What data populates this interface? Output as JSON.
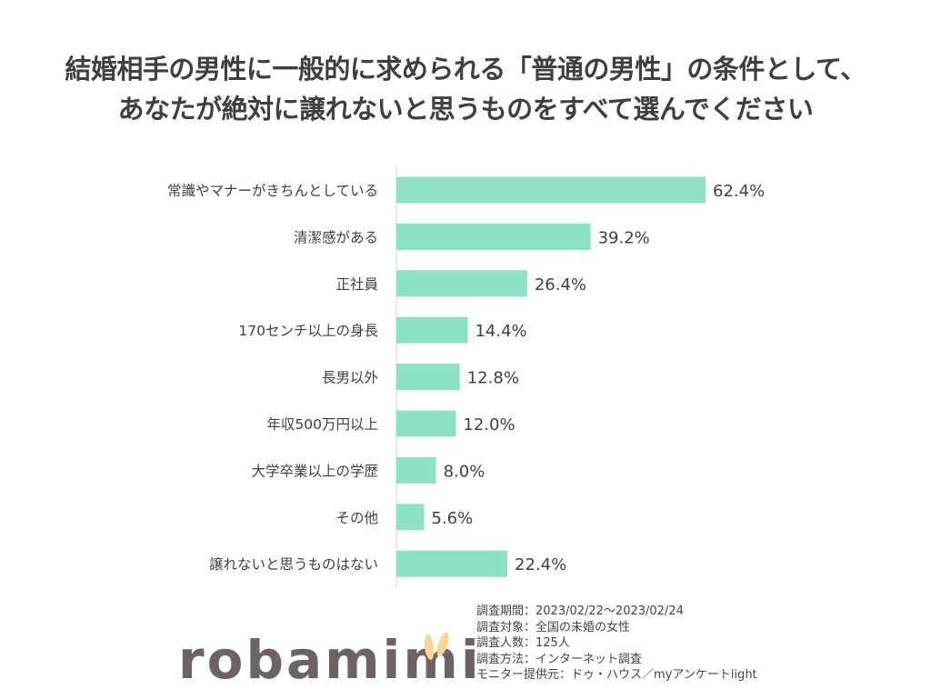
{
  "colors": {
    "bar": "#8ce0c4",
    "axis": "#e0e0e0",
    "text": "#404040",
    "logo": "#6d6361",
    "ear": "#f8d39a"
  },
  "chart_data": {
    "type": "bar",
    "orientation": "horizontal",
    "title": [
      "結婚相手の男性に一般的に求められる「普通の男性」の条件として、",
      "あなたが絶対に譲れないと思うものをすべて選んでください"
    ],
    "categories": [
      "常識やマナーがきちんとしている",
      "清潔感がある",
      "正社員",
      "170センチ以上の身長",
      "長男以外",
      "年収500万円以上",
      "大学卒業以上の学歴",
      "その他",
      "譲れないと思うものはない"
    ],
    "values": [
      62.4,
      39.2,
      26.4,
      14.4,
      12.8,
      12.0,
      8.0,
      5.6,
      22.4
    ],
    "labels": [
      "62.4%",
      "39.2%",
      "26.4%",
      "14.4%",
      "12.8%",
      "12.0%",
      "8.0%",
      "5.6%",
      "22.4%"
    ],
    "unit": "%",
    "xlim": [
      0,
      100
    ],
    "grid": false,
    "legend": "none"
  },
  "notes": [
    "調査期間：2023/02/22～2023/02/24",
    "調査対象：全国の未婚の女性",
    "調査人数：125人",
    "調査方法：インターネット調査",
    "モニター提供元：ドゥ・ハウス／myアンケートlight"
  ],
  "logo": {
    "text": "robamimi"
  }
}
